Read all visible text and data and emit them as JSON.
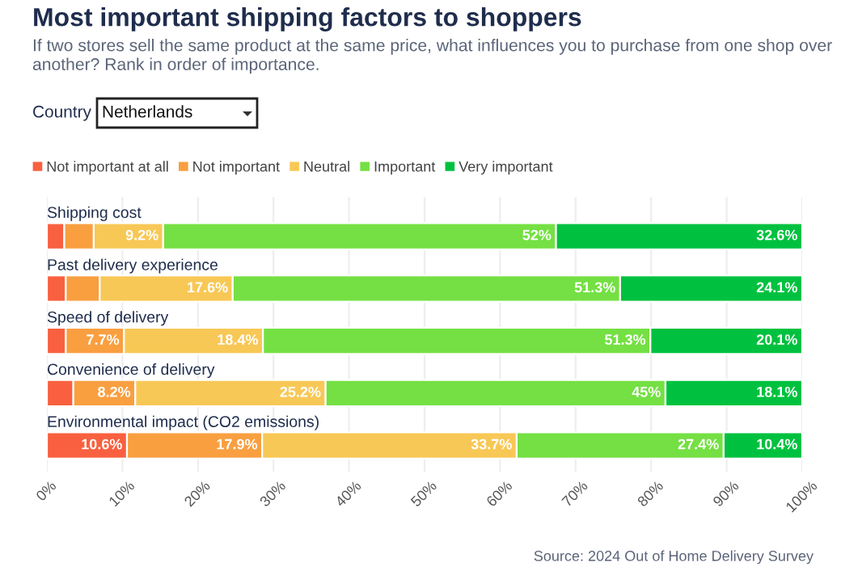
{
  "chart_data": {
    "type": "bar",
    "orientation": "horizontal",
    "stacked": true,
    "title": "Most important shipping factors to shoppers",
    "subtitle": "If two stores sell the same product at the same price, what influences you to purchase from one shop over another? Rank in order of importance.",
    "categories": [
      "Shipping cost",
      "Past delivery experience",
      "Speed of delivery",
      "Convenience of delivery",
      "Environmental impact (CO2 emissions)"
    ],
    "series": [
      {
        "name": "Not important at all",
        "color": "#f9603f",
        "values": [
          2.3,
          2.5,
          2.5,
          3.5,
          10.6
        ],
        "value_labels": [
          null,
          null,
          null,
          null,
          "10.6%"
        ]
      },
      {
        "name": "Not important",
        "color": "#f99f40",
        "values": [
          3.9,
          4.5,
          7.7,
          8.2,
          17.9
        ],
        "value_labels": [
          null,
          null,
          "7.7%",
          "8.2%",
          "17.9%"
        ]
      },
      {
        "name": "Neutral",
        "color": "#f8c856",
        "values": [
          9.2,
          17.6,
          18.4,
          25.2,
          33.7
        ],
        "value_labels": [
          "9.2%",
          "17.6%",
          "18.4%",
          "25.2%",
          "33.7%"
        ]
      },
      {
        "name": "Important",
        "color": "#74e043",
        "values": [
          52,
          51.3,
          51.3,
          45,
          27.4
        ],
        "value_labels": [
          "52%",
          "51.3%",
          "51.3%",
          "45%",
          "27.4%"
        ]
      },
      {
        "name": "Very important",
        "color": "#00c13f",
        "values": [
          32.6,
          24.1,
          20.1,
          18.1,
          10.4
        ],
        "value_labels": [
          "32.6%",
          "24.1%",
          "20.1%",
          "18.1%",
          "10.4%"
        ]
      }
    ],
    "xlim": [
      0,
      100
    ],
    "xticks": [
      {
        "value": 0,
        "label": "0%"
      },
      {
        "value": 10,
        "label": "10%"
      },
      {
        "value": 20,
        "label": "20%"
      },
      {
        "value": 30,
        "label": "30%"
      },
      {
        "value": 40,
        "label": "40%"
      },
      {
        "value": 50,
        "label": "50%"
      },
      {
        "value": 60,
        "label": "60%"
      },
      {
        "value": 70,
        "label": "70%"
      },
      {
        "value": 80,
        "label": "80%"
      },
      {
        "value": 90,
        "label": "90%"
      },
      {
        "value": 100,
        "label": "100%"
      }
    ],
    "grid": "x",
    "legend": "top left",
    "annotations": [
      "Country",
      "Netherlands",
      "Source: 2024 Out of Home Delivery Survey"
    ]
  }
}
